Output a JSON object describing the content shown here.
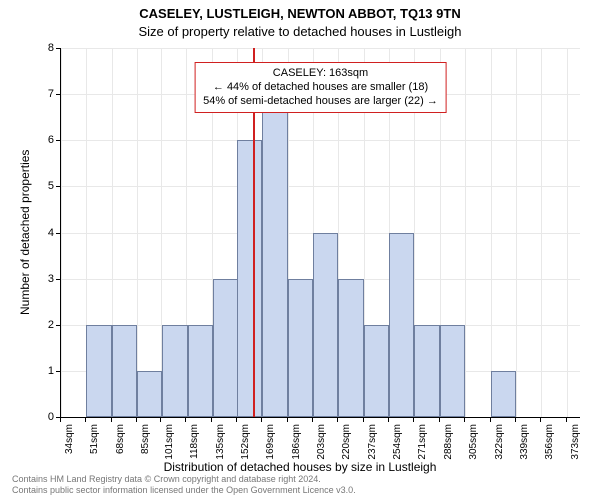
{
  "chart": {
    "type": "histogram",
    "title1": "CASELEY, LUSTLEIGH, NEWTON ABBOT, TQ13 9TN",
    "title2": "Size of property relative to detached houses in Lustleigh",
    "ylabel": "Number of detached properties",
    "xlabel": "Distribution of detached houses by size in Lustleigh",
    "background_color": "#ffffff",
    "grid_color": "#e8e8e8",
    "axis_color": "#000000",
    "bar_fill": "#cad7ef",
    "bar_border": "#6f7f9f",
    "marker_color": "#d02020",
    "marker_sqm": 163,
    "title_fontsize": 13,
    "label_fontsize": 12,
    "tick_fontsize": 11,
    "xtick_fontsize": 10,
    "x_min": 34,
    "x_max": 382,
    "x_tick_step": 17,
    "x_unit": "sqm",
    "ylim": [
      0,
      8
    ],
    "ytick_step": 1,
    "bin_width_sqm": 17,
    "bins": [
      {
        "start": 51,
        "count": 2
      },
      {
        "start": 68,
        "count": 2
      },
      {
        "start": 85,
        "count": 1
      },
      {
        "start": 102,
        "count": 2
      },
      {
        "start": 119,
        "count": 2
      },
      {
        "start": 136,
        "count": 3
      },
      {
        "start": 152,
        "count": 6
      },
      {
        "start": 169,
        "count": 7
      },
      {
        "start": 186,
        "count": 3
      },
      {
        "start": 203,
        "count": 4
      },
      {
        "start": 220,
        "count": 3
      },
      {
        "start": 237,
        "count": 2
      },
      {
        "start": 254,
        "count": 4
      },
      {
        "start": 271,
        "count": 2
      },
      {
        "start": 288,
        "count": 2
      },
      {
        "start": 322,
        "count": 1
      }
    ],
    "x_ticks": [
      34,
      51,
      68,
      85,
      101,
      118,
      135,
      152,
      169,
      186,
      203,
      220,
      237,
      254,
      271,
      288,
      305,
      322,
      339,
      356,
      373
    ],
    "annotation": {
      "line1": "CASELEY: 163sqm",
      "line2": "← 44% of detached houses are smaller (18)",
      "line3": "54% of semi-detached houses are larger (22) →",
      "border_color": "#d02020",
      "bg_color": "#ffffff",
      "fontsize": 11
    },
    "footer": {
      "line1": "Contains HM Land Registry data © Crown copyright and database right 2024.",
      "line2": "Contains public sector information licensed under the Open Government Licence v3.0.",
      "color": "#777777",
      "fontsize": 9
    }
  }
}
